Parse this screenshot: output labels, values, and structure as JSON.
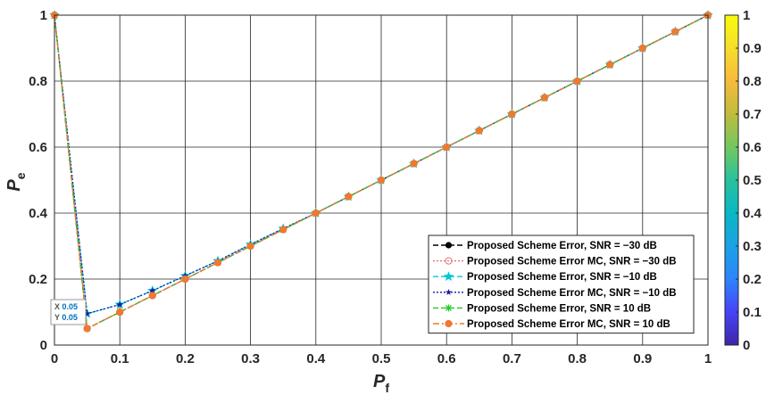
{
  "chart_data": {
    "type": "line",
    "title": "",
    "xlabel": "P",
    "xlabel_sub": "f",
    "ylabel": "P",
    "ylabel_sub": "e",
    "xlim": [
      0,
      1
    ],
    "ylim": [
      0,
      1
    ],
    "xticks": [
      0,
      0.1,
      0.2,
      0.3,
      0.4,
      0.5,
      0.6,
      0.7,
      0.8,
      0.9,
      1
    ],
    "xtick_labels": [
      "0",
      "0.1",
      "0.2",
      "0.3",
      "0.4",
      "0.5",
      "0.6",
      "0.7",
      "0.8",
      "0.9",
      "1"
    ],
    "yticks": [
      0,
      0.2,
      0.4,
      0.6,
      0.8,
      1
    ],
    "ytick_labels": [
      "0",
      "0.2",
      "0.4",
      "0.6",
      "0.8",
      "1"
    ],
    "grid": true,
    "legend_position": "bottom-right",
    "series": [
      {
        "name": "Proposed Scheme Error, SNR = −30 dB",
        "color": "#000000",
        "dash": "6,3",
        "marker": "dot",
        "x": [
          0,
          0.05,
          0.1,
          0.15,
          0.2,
          0.25,
          0.3,
          0.35,
          0.4,
          0.45,
          0.5,
          0.55,
          0.6,
          0.65,
          0.7,
          0.75,
          0.8,
          0.85,
          0.9,
          0.95,
          1
        ],
        "y": [
          1,
          0.05,
          0.1,
          0.15,
          0.2,
          0.25,
          0.3,
          0.35,
          0.4,
          0.45,
          0.5,
          0.55,
          0.6,
          0.65,
          0.7,
          0.75,
          0.8,
          0.85,
          0.9,
          0.95,
          1
        ]
      },
      {
        "name": "Proposed Scheme Error MC, SNR = −30 dB",
        "color": "#e07070",
        "dash": "2,2",
        "marker": "circle-open",
        "x": [
          0,
          0.05,
          0.1,
          0.15,
          0.2,
          0.25,
          0.3,
          0.35,
          0.4,
          0.45,
          0.5,
          0.55,
          0.6,
          0.65,
          0.7,
          0.75,
          0.8,
          0.85,
          0.9,
          0.95,
          1
        ],
        "y": [
          1,
          0.05,
          0.1,
          0.15,
          0.2,
          0.25,
          0.3,
          0.35,
          0.4,
          0.45,
          0.5,
          0.55,
          0.6,
          0.65,
          0.7,
          0.75,
          0.8,
          0.85,
          0.9,
          0.95,
          1
        ]
      },
      {
        "name": "Proposed Scheme Error, SNR = −10 dB",
        "color": "#00c8d8",
        "dash": "6,3",
        "marker": "star",
        "x": [
          0,
          0.05,
          0.1,
          0.15,
          0.2,
          0.25,
          0.3,
          0.35,
          0.4,
          0.45,
          0.5,
          0.55,
          0.6,
          0.65,
          0.7,
          0.75,
          0.8,
          0.85,
          0.9,
          0.95,
          1
        ],
        "y": [
          1,
          0.095,
          0.123,
          0.165,
          0.21,
          0.255,
          0.305,
          0.353,
          0.4,
          0.45,
          0.5,
          0.55,
          0.6,
          0.65,
          0.7,
          0.75,
          0.8,
          0.85,
          0.9,
          0.95,
          1
        ]
      },
      {
        "name": "Proposed Scheme Error MC, SNR = −10 dB",
        "color": "#1a1aa0",
        "dash": "2,2",
        "marker": "star-small",
        "x": [
          0,
          0.05,
          0.1,
          0.15,
          0.2,
          0.25,
          0.3,
          0.35,
          0.4,
          0.45,
          0.5,
          0.55,
          0.6,
          0.65,
          0.7,
          0.75,
          0.8,
          0.85,
          0.9,
          0.95,
          1
        ],
        "y": [
          1,
          0.095,
          0.123,
          0.165,
          0.21,
          0.255,
          0.305,
          0.353,
          0.4,
          0.45,
          0.5,
          0.55,
          0.6,
          0.65,
          0.7,
          0.75,
          0.8,
          0.85,
          0.9,
          0.95,
          1
        ]
      },
      {
        "name": "Proposed Scheme Error, SNR = 10 dB",
        "color": "#22cc22",
        "dash": "6,3",
        "marker": "asterisk",
        "x": [
          0,
          0.05,
          0.1,
          0.15,
          0.2,
          0.25,
          0.3,
          0.35,
          0.4,
          0.45,
          0.5,
          0.55,
          0.6,
          0.65,
          0.7,
          0.75,
          0.8,
          0.85,
          0.9,
          0.95,
          1
        ],
        "y": [
          1,
          0.05,
          0.1,
          0.15,
          0.2,
          0.25,
          0.3,
          0.35,
          0.4,
          0.45,
          0.5,
          0.55,
          0.6,
          0.65,
          0.7,
          0.75,
          0.8,
          0.85,
          0.9,
          0.95,
          1
        ]
      },
      {
        "name": "Proposed Scheme Error MC, SNR = 10 dB",
        "color": "#f07830",
        "dash": "7,3,2,3",
        "marker": "dot-orange",
        "x": [
          0,
          0.05,
          0.1,
          0.15,
          0.2,
          0.25,
          0.3,
          0.35,
          0.4,
          0.45,
          0.5,
          0.55,
          0.6,
          0.65,
          0.7,
          0.75,
          0.8,
          0.85,
          0.9,
          0.95,
          1
        ],
        "y": [
          1,
          0.05,
          0.1,
          0.15,
          0.2,
          0.25,
          0.3,
          0.35,
          0.4,
          0.45,
          0.5,
          0.55,
          0.6,
          0.65,
          0.7,
          0.75,
          0.8,
          0.85,
          0.9,
          0.95,
          1
        ]
      }
    ],
    "datatip": {
      "x_label": "X",
      "x_value": "0.05",
      "y_label": "Y",
      "y_value": "0.05",
      "x": 0.05,
      "y": 0.05
    },
    "colorbar": {
      "ticks": [
        0,
        0.1,
        0.2,
        0.3,
        0.4,
        0.5,
        0.6,
        0.7,
        0.8,
        0.9,
        1
      ],
      "tick_labels": [
        "0",
        "0.1",
        "0.2",
        "0.3",
        "0.4",
        "0.5",
        "0.6",
        "0.7",
        "0.8",
        "0.9",
        "1"
      ],
      "colormap": [
        "#3e26a8",
        "#4743f8",
        "#2d84fc",
        "#1aa2e4",
        "#0ab7c4",
        "#27c29c",
        "#73c760",
        "#c0bc3c",
        "#f7ba3c",
        "#f6de2a",
        "#f9fb0e"
      ]
    }
  }
}
